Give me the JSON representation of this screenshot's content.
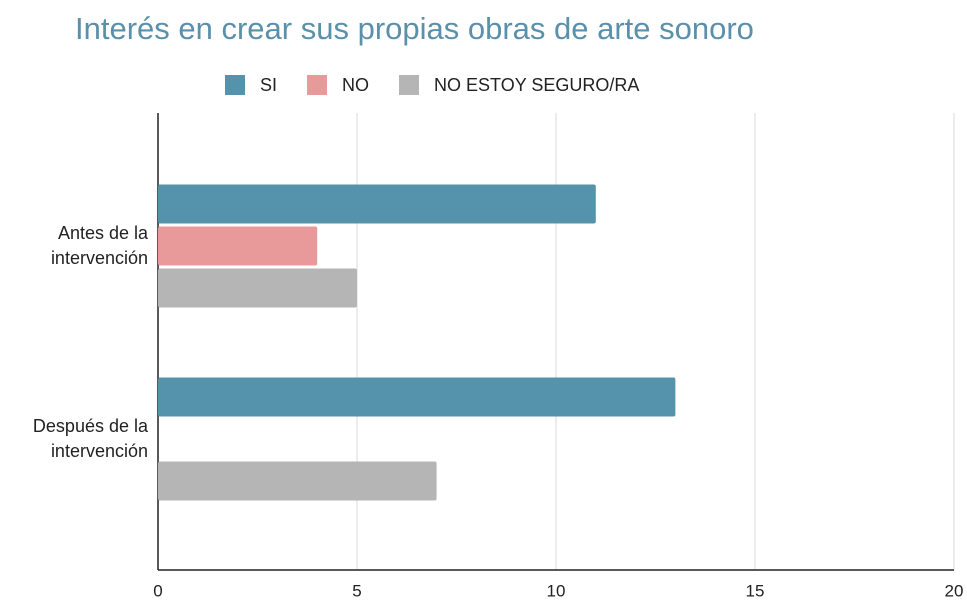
{
  "chart_data": {
    "type": "barh",
    "title": "Interés en crear sus propias obras de arte sonoro",
    "categories": [
      "Antes de la intervención",
      "Después de la intervención"
    ],
    "series": [
      {
        "name": "SI",
        "color": "#5592ab",
        "values": [
          11,
          13
        ]
      },
      {
        "name": "NO",
        "color": "#e89a9a",
        "values": [
          4,
          0
        ]
      },
      {
        "name": "NO ESTOY SEGURO/RA",
        "color": "#b5b5b5",
        "values": [
          5,
          7
        ]
      }
    ],
    "xlim": [
      0,
      20
    ],
    "xticks": [
      0,
      5,
      10,
      15,
      20
    ],
    "grid": true,
    "legend": "top"
  }
}
